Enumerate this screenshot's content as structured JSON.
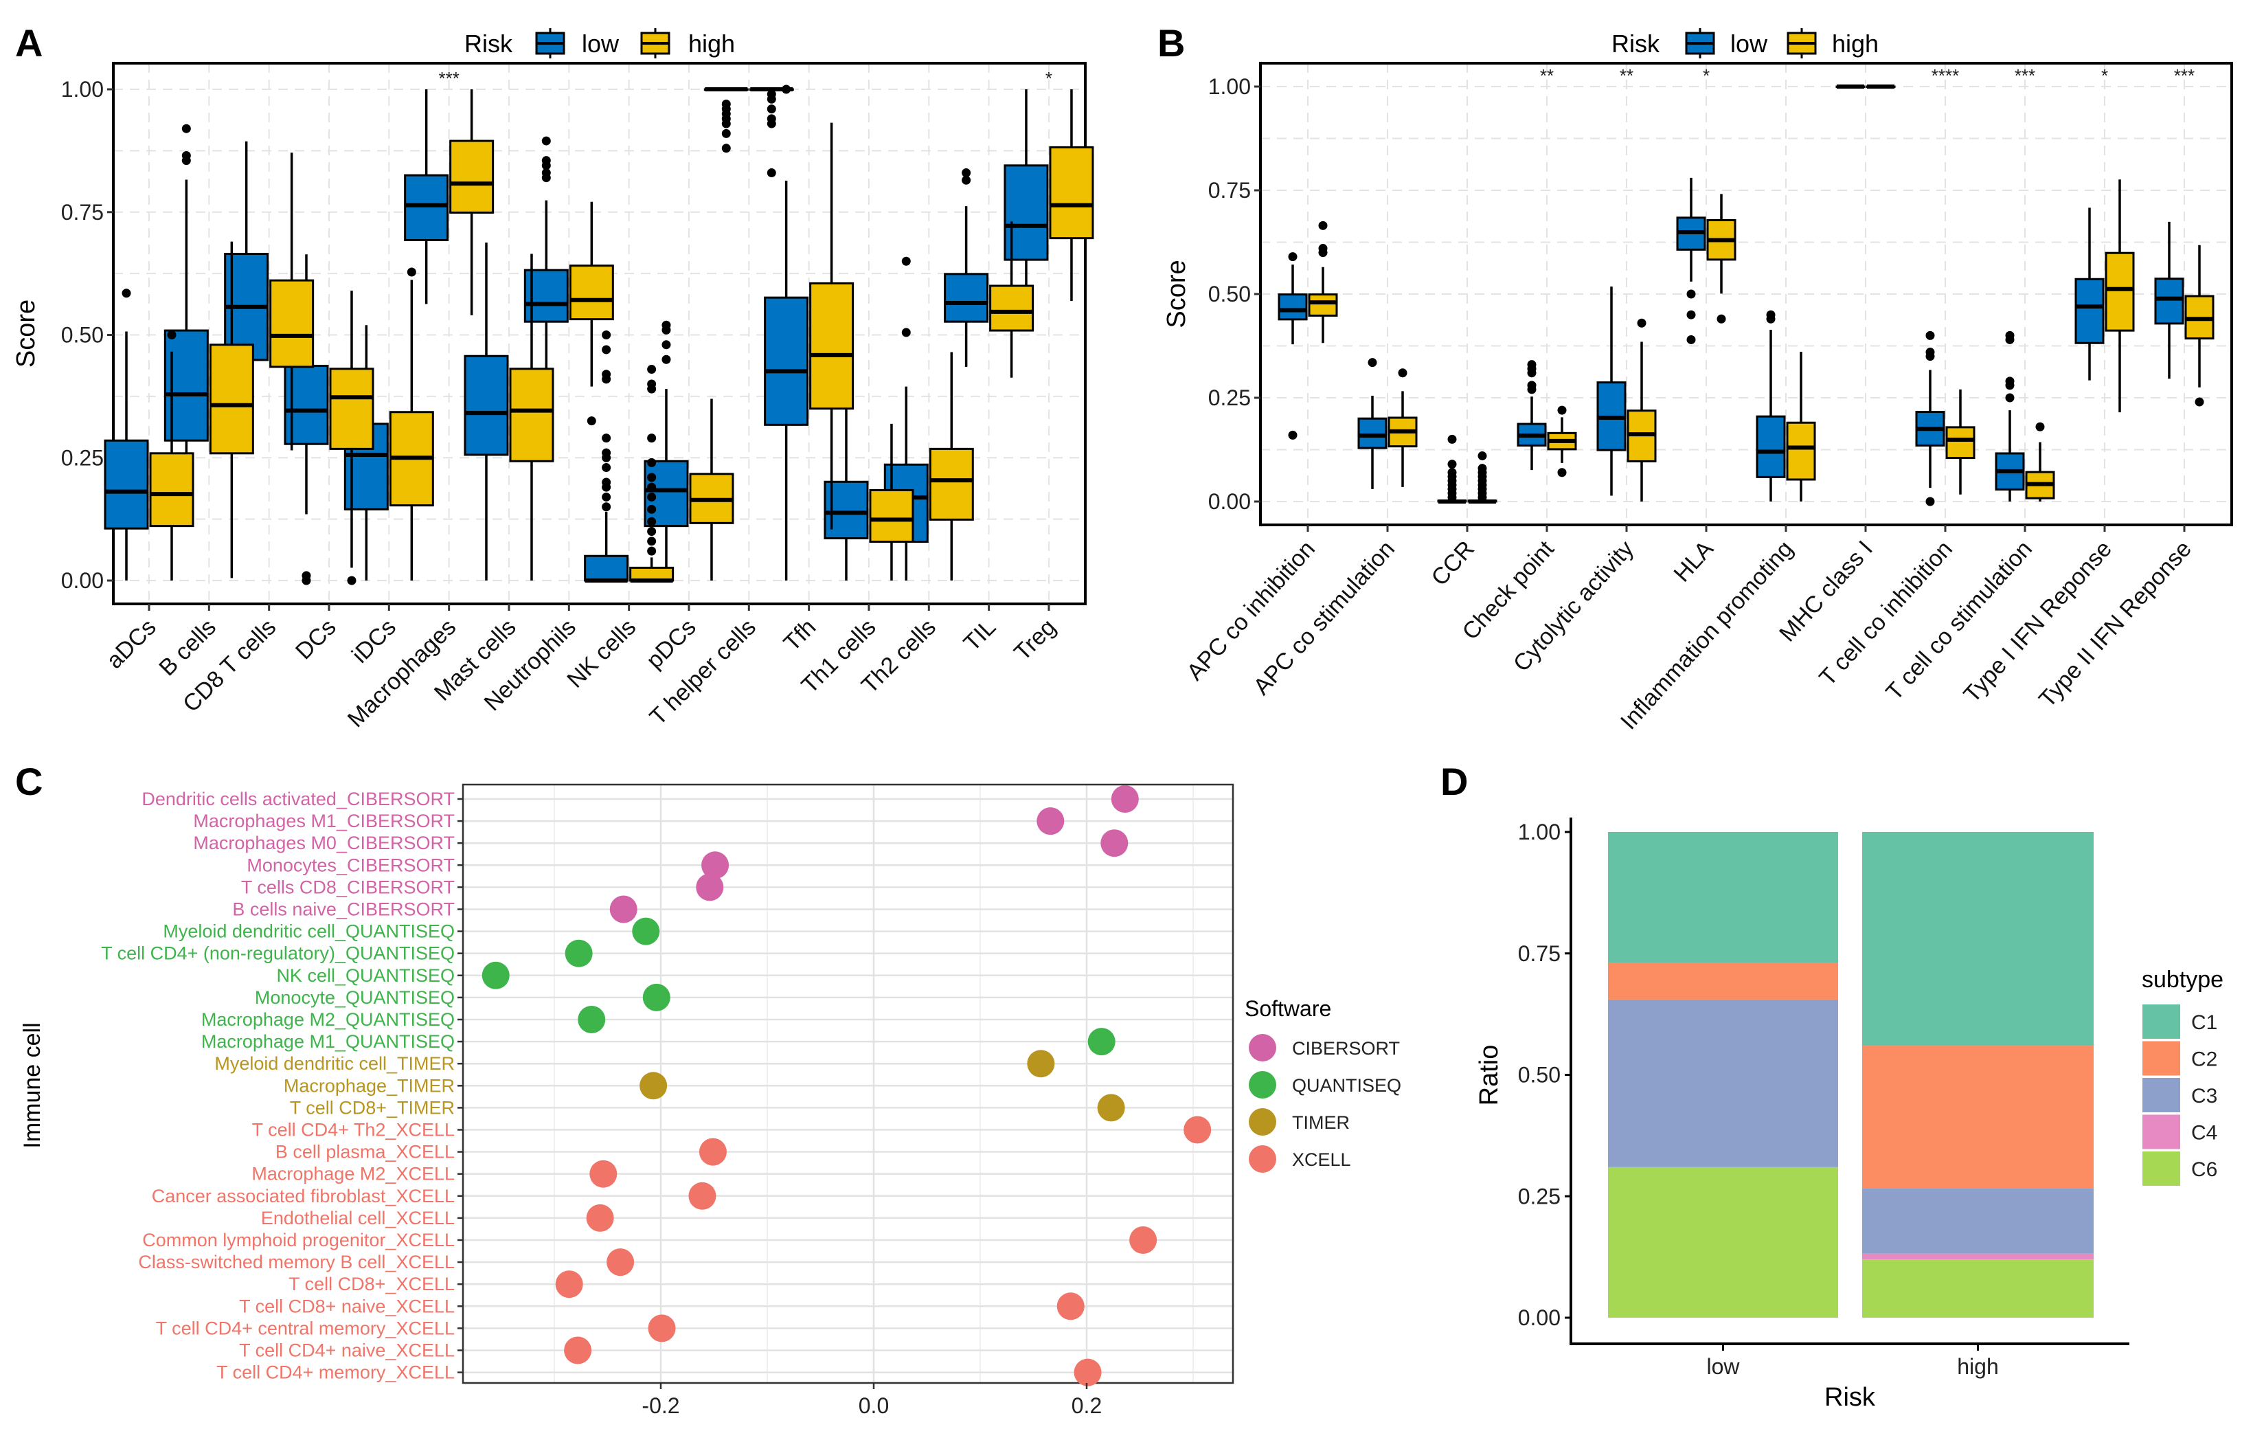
{
  "panel_labels": [
    "A",
    "B",
    "C",
    "D"
  ],
  "chart_data": [
    {
      "panel": "A",
      "type": "box",
      "ylabel": "Score",
      "ylim": [
        -0.05,
        1.05
      ],
      "yticks": [
        0,
        0.25,
        0.5,
        0.75,
        1.0
      ],
      "ytick_labels": [
        "0.00",
        "0.25",
        "0.50",
        "0.75",
        "1.00"
      ],
      "grid": true,
      "legend": {
        "title": "Risk",
        "position": "top",
        "entries": [
          "low",
          "high"
        ]
      },
      "colors": {
        "low": "#0073C2",
        "high": "#EFC000"
      },
      "categories": [
        "aDCs",
        "B cells",
        "CD8 T cells",
        "DCs",
        "iDCs",
        "Macrophages",
        "Mast cells",
        "Neutrophils",
        "NK cells",
        "pDCs",
        "T helper cells",
        "Tfh",
        "Th1 cells",
        "Th2 cells",
        "TIL",
        "Treg"
      ],
      "significance": [
        "",
        "",
        "",
        "",
        "",
        "***",
        "",
        "",
        "",
        "",
        "",
        "",
        "",
        "",
        "",
        "*"
      ],
      "box_fields": [
        "lower_whisker",
        "q1",
        "median",
        "q3",
        "upper_whisker"
      ],
      "series": [
        {
          "name": "low",
          "boxes": [
            [
              0,
              0.106,
              0.181,
              0.285,
              0.507
            ],
            [
              0.186,
              0.285,
              0.379,
              0.509,
              0.816
            ],
            [
              0.26,
              0.449,
              0.557,
              0.665,
              0.894
            ],
            [
              0.135,
              0.278,
              0.346,
              0.437,
              0.664
            ],
            [
              0,
              0.145,
              0.256,
              0.319,
              0.52
            ],
            [
              0.563,
              0.693,
              0.764,
              0.825,
              1.0
            ],
            [
              0,
              0.256,
              0.341,
              0.457,
              0.688
            ],
            [
              0.426,
              0.527,
              0.563,
              0.632,
              0.774
            ],
            [
              0,
              0,
              0,
              0.05,
              0.14
            ],
            [
              0,
              0.111,
              0.184,
              0.243,
              0.39
            ],
            [
              1,
              1,
              1,
              1,
              1
            ],
            [
              0,
              0.317,
              0.426,
              0.576,
              0.814
            ],
            [
              0,
              0.086,
              0.138,
              0.201,
              0.37
            ],
            [
              0,
              0.079,
              0.169,
              0.236,
              0.395
            ],
            [
              0.435,
              0.527,
              0.565,
              0.624,
              0.762
            ],
            [
              0.592,
              0.653,
              0.722,
              0.845,
              1.0
            ]
          ],
          "outliers": [
            [
              0.585
            ],
            [
              0.855,
              0.865,
              0.92
            ],
            [],
            [
              0,
              0.01
            ],
            [],
            [],
            [
              0.765
            ],
            [
              0.82,
              0.83,
              0.845,
              0.855,
              0.895
            ],
            [
              0.15,
              0.17,
              0.19,
              0.2,
              0.23,
              0.25,
              0.26,
              0.29,
              0.41,
              0.42,
              0.47,
              0.5,
              0.55,
              0.58
            ],
            [
              0.45,
              0.48,
              0.51,
              0.52
            ],
            [
              0.88,
              0.91,
              0.93,
              0.94,
              0.95,
              0.96,
              0.97
            ],
            [
              1.0
            ],
            [
              0.41,
              0.43,
              0.46,
              0.5
            ],
            [
              0.505,
              0.65
            ],
            [
              0.815,
              0.83
            ],
            []
          ]
        },
        {
          "name": "high",
          "boxes": [
            [
              0,
              0.111,
              0.176,
              0.259,
              0.466
            ],
            [
              0.005,
              0.259,
              0.357,
              0.48,
              0.69
            ],
            [
              0.265,
              0.435,
              0.498,
              0.611,
              0.871
            ],
            [
              0.026,
              0.268,
              0.373,
              0.431,
              0.59
            ],
            [
              0,
              0.153,
              0.25,
              0.343,
              0.612
            ],
            [
              0.54,
              0.749,
              0.808,
              0.895,
              1.0
            ],
            [
              0,
              0.243,
              0.346,
              0.431,
              0.665
            ],
            [
              0.395,
              0.532,
              0.571,
              0.641,
              0.771
            ],
            [
              0,
              0,
              0,
              0.026,
              0.047
            ],
            [
              0,
              0.117,
              0.164,
              0.217,
              0.37
            ],
            [
              1,
              1,
              1,
              1,
              1
            ],
            [
              0.104,
              0.35,
              0.459,
              0.605,
              0.932
            ],
            [
              0,
              0.079,
              0.124,
              0.184,
              0.319
            ],
            [
              0,
              0.124,
              0.204,
              0.268,
              0.465
            ],
            [
              0.413,
              0.509,
              0.547,
              0.6,
              0.731
            ],
            [
              0.569,
              0.697,
              0.764,
              0.882,
              1.0
            ]
          ],
          "outliers": [
            [
              0.5
            ],
            [],
            [],
            [
              0
            ],
            [
              0.628
            ],
            [],
            [],
            [
              0.325
            ],
            [
              0.06,
              0.08,
              0.1,
              0.12,
              0.145,
              0.17,
              0.19,
              0.21,
              0.24,
              0.29,
              0.39,
              0.4,
              0.43
            ],
            [],
            [
              0.83,
              0.93,
              0.94,
              0.96,
              0.98,
              0.99
            ],
            [],
            [],
            [],
            [],
            []
          ]
        }
      ]
    },
    {
      "panel": "B",
      "type": "box",
      "ylabel": "Score",
      "ylim": [
        -0.05,
        1.05
      ],
      "yticks": [
        0,
        0.25,
        0.5,
        0.75,
        1.0
      ],
      "ytick_labels": [
        "0.00",
        "0.25",
        "0.50",
        "0.75",
        "1.00"
      ],
      "grid": true,
      "legend": {
        "title": "Risk",
        "position": "top",
        "entries": [
          "low",
          "high"
        ]
      },
      "colors": {
        "low": "#0073C2",
        "high": "#EFC000"
      },
      "categories": [
        "APC co inhibition",
        "APC co stimulation",
        "CCR",
        "Check point",
        "Cytolytic activity",
        "HLA",
        "Inflammation promoting",
        "MHC class I",
        "T cell co inhibition",
        "T cell co stimulation",
        "Type I IFN Reponse",
        "Type II IFN Reponse"
      ],
      "significance": [
        "",
        "",
        "",
        "**",
        "**",
        "*",
        "",
        "",
        "****",
        "***",
        "*",
        "***"
      ],
      "box_fields": [
        "lower_whisker",
        "q1",
        "median",
        "q3",
        "upper_whisker"
      ],
      "series": [
        {
          "name": "low",
          "boxes": [
            [
              0.379,
              0.439,
              0.461,
              0.499,
              0.571
            ],
            [
              0.03,
              0.129,
              0.159,
              0.2,
              0.255
            ],
            [
              0,
              0,
              0,
              0.002,
              0.003
            ],
            [
              0.076,
              0.135,
              0.159,
              0.187,
              0.253
            ],
            [
              0.014,
              0.124,
              0.202,
              0.287,
              0.518
            ],
            [
              0.53,
              0.607,
              0.649,
              0.684,
              0.78
            ],
            [
              0,
              0.059,
              0.12,
              0.205,
              0.414
            ],
            [
              1,
              1,
              1,
              1,
              1
            ],
            [
              0.033,
              0.135,
              0.175,
              0.216,
              0.317
            ],
            [
              0,
              0.029,
              0.073,
              0.116,
              0.22
            ],
            [
              0.292,
              0.382,
              0.47,
              0.536,
              0.708
            ],
            [
              0.296,
              0.429,
              0.489,
              0.537,
              0.674
            ]
          ],
          "outliers": [
            [
              0.16,
              0.59
            ],
            [
              0.335
            ],
            [
              0.01,
              0.02,
              0.03,
              0.04,
              0.05,
              0.06,
              0.07,
              0.09,
              0.15
            ],
            [
              0.27,
              0.28,
              0.31,
              0.32,
              0.33
            ],
            [],
            [
              0.39,
              0.45,
              0.5
            ],
            [
              0.44,
              0.45
            ],
            [],
            [
              0,
              0.35,
              0.36,
              0.4
            ],
            [
              0.25,
              0.28,
              0.29,
              0.39,
              0.4
            ],
            [],
            []
          ]
        },
        {
          "name": "high",
          "boxes": [
            [
              0.382,
              0.448,
              0.48,
              0.499,
              0.565
            ],
            [
              0.035,
              0.133,
              0.169,
              0.202,
              0.266
            ],
            [
              0,
              0,
              0,
              0.002,
              0.003
            ],
            [
              0.093,
              0.126,
              0.146,
              0.165,
              0.203
            ],
            [
              0,
              0.097,
              0.162,
              0.219,
              0.385
            ],
            [
              0.501,
              0.583,
              0.63,
              0.678,
              0.741
            ],
            [
              0,
              0.053,
              0.13,
              0.19,
              0.361
            ],
            [
              1,
              1,
              1,
              1,
              1
            ],
            [
              0.017,
              0.105,
              0.149,
              0.179,
              0.27
            ],
            [
              0,
              0.008,
              0.042,
              0.071,
              0.143
            ],
            [
              0.215,
              0.412,
              0.512,
              0.599,
              0.776
            ],
            [
              0.275,
              0.393,
              0.44,
              0.495,
              0.618
            ]
          ],
          "outliers": [
            [
              0.6,
              0.61,
              0.665
            ],
            [
              0.31
            ],
            [
              0.01,
              0.02,
              0.03,
              0.04,
              0.05,
              0.06,
              0.07,
              0.08,
              0.11
            ],
            [
              0.07,
              0.22
            ],
            [
              0.43
            ],
            [
              0.44
            ],
            [],
            [],
            [],
            [
              0.18
            ],
            [],
            [
              0.24
            ]
          ]
        }
      ]
    },
    {
      "panel": "C",
      "type": "scatter",
      "xlabel": "",
      "ylabel": "Immune cell",
      "xlim": [
        -0.386,
        0.338
      ],
      "xticks": [
        -0.2,
        0.0,
        0.2
      ],
      "xtick_labels": [
        "-0.2",
        "0.0",
        "0.2"
      ],
      "grid": true,
      "legend": {
        "title": "Software",
        "position": "right",
        "entries": [
          "CIBERSORT",
          "QUANTISEQ",
          "TIMER",
          "XCELL"
        ]
      },
      "colors": {
        "CIBERSORT": "#D263A6",
        "QUANTISEQ": "#3DB54A",
        "TIMER": "#B8951E",
        "XCELL": "#F07468"
      },
      "categories": [
        "Dendritic cells activated_CIBERSORT",
        "Macrophages M1_CIBERSORT",
        "Macrophages M0_CIBERSORT",
        "Monocytes_CIBERSORT",
        "T cells CD8_CIBERSORT",
        "B cells naive_CIBERSORT",
        "Myeloid dendritic cell_QUANTISEQ",
        "T cell CD4+ (non-regulatory)_QUANTISEQ",
        "NK cell_QUANTISEQ",
        "Monocyte_QUANTISEQ",
        "Macrophage M2_QUANTISEQ",
        "Macrophage M1_QUANTISEQ",
        "Myeloid dendritic cell_TIMER",
        "Macrophage_TIMER",
        "T cell CD8+_TIMER",
        "T cell CD4+ Th2_XCELL",
        "B cell plasma_XCELL",
        "Macrophage M2_XCELL",
        "Cancer associated fibroblast_XCELL",
        "Endothelial cell_XCELL",
        "Common lymphoid progenitor_XCELL",
        "Class-switched memory B cell_XCELL",
        "T cell CD8+_XCELL",
        "T cell CD8+ naive_XCELL",
        "T cell CD4+ central memory_XCELL",
        "T cell CD4+ naive_XCELL",
        "T cell CD4+ memory_XCELL"
      ],
      "software": [
        "CIBERSORT",
        "CIBERSORT",
        "CIBERSORT",
        "CIBERSORT",
        "CIBERSORT",
        "CIBERSORT",
        "QUANTISEQ",
        "QUANTISEQ",
        "QUANTISEQ",
        "QUANTISEQ",
        "QUANTISEQ",
        "QUANTISEQ",
        "TIMER",
        "TIMER",
        "TIMER",
        "XCELL",
        "XCELL",
        "XCELL",
        "XCELL",
        "XCELL",
        "XCELL",
        "XCELL",
        "XCELL",
        "XCELL",
        "XCELL",
        "XCELL",
        "XCELL"
      ],
      "values": [
        0.236,
        0.166,
        0.226,
        -0.149,
        -0.154,
        -0.235,
        -0.214,
        -0.277,
        -0.355,
        -0.204,
        -0.265,
        0.214,
        0.157,
        -0.207,
        0.223,
        0.304,
        -0.151,
        -0.254,
        -0.161,
        -0.257,
        0.253,
        -0.238,
        -0.286,
        0.185,
        -0.199,
        -0.278,
        0.201
      ]
    },
    {
      "panel": "D",
      "type": "bar",
      "stacked": true,
      "xlabel": "Risk",
      "ylabel": "Ratio",
      "ylim": [
        -0.04,
        1.04
      ],
      "yticks": [
        0,
        0.25,
        0.5,
        0.75,
        1.0
      ],
      "ytick_labels": [
        "0.00",
        "0.25",
        "0.50",
        "0.75",
        "1.00"
      ],
      "grid": false,
      "categories": [
        "low",
        "high"
      ],
      "legend": {
        "title": "subtype",
        "position": "right"
      },
      "series": [
        {
          "name": "C1",
          "color": "#66C2A5",
          "values": [
            0.27,
            0.44
          ]
        },
        {
          "name": "C2",
          "color": "#FC8D62",
          "values": [
            0.075,
            0.293
          ]
        },
        {
          "name": "C3",
          "color": "#8DA0CB",
          "values": [
            0.345,
            0.135
          ]
        },
        {
          "name": "C4",
          "color": "#E78AC3",
          "values": [
            0.0,
            0.012
          ]
        },
        {
          "name": "C6",
          "color": "#A6D854",
          "values": [
            0.31,
            0.12
          ]
        }
      ]
    }
  ]
}
